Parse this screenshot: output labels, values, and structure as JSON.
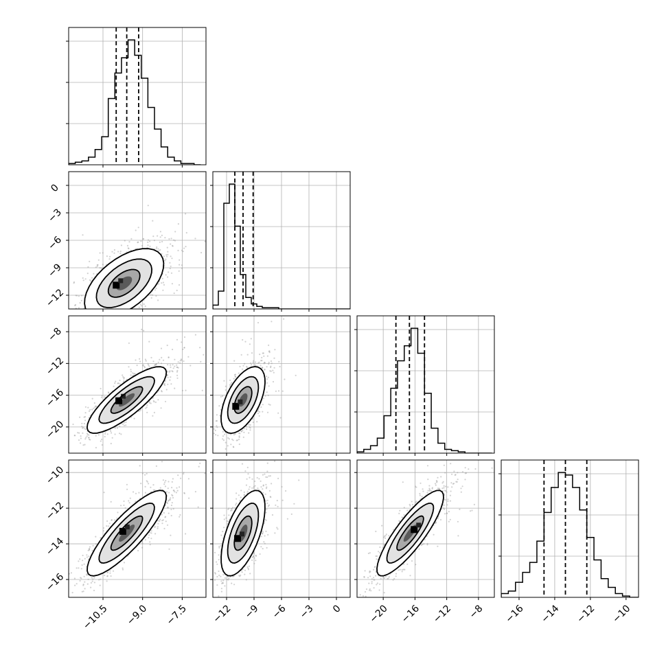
{
  "chart_data": {
    "type": "scatter",
    "n_params": 4,
    "grid": true,
    "params": [
      {
        "range": [
          -11.8,
          -6.6
        ],
        "ticks": [
          -10.5,
          -9.0,
          -7.5
        ],
        "tick_labels": [
          "−10.5",
          "−9.0",
          "−7.5"
        ],
        "quantiles": [
          -10.0,
          -9.6,
          -9.15
        ]
      },
      {
        "range": [
          -13.5,
          1.5
        ],
        "ticks": [
          -12,
          -9,
          -6,
          -3,
          0
        ],
        "tick_labels": [
          "−12",
          "−9",
          "−6",
          "−3",
          "0"
        ],
        "quantiles": [
          -11.1,
          -10.2,
          -9.1
        ]
      },
      {
        "range": [
          -23.3,
          -6.0
        ],
        "ticks": [
          -20,
          -16,
          -12,
          -8
        ],
        "tick_labels": [
          "−20",
          "−16",
          "−12",
          "−8"
        ],
        "quantiles": [
          -18.4,
          -16.7,
          -14.8
        ]
      },
      {
        "range": [
          -17.0,
          -9.3
        ],
        "ticks": [
          -16,
          -14,
          -12,
          -10
        ],
        "tick_labels": [
          "−16",
          "−14",
          "−12",
          "−10"
        ],
        "quantiles": [
          -14.6,
          -13.4,
          -12.2
        ]
      }
    ],
    "histograms": [
      {
        "param": 0,
        "bin_start": -11.8,
        "bin_width": 0.25,
        "counts": [
          1,
          2,
          3,
          6,
          12,
          22,
          52,
          72,
          84,
          98,
          86,
          68,
          45,
          28,
          14,
          6,
          3,
          1,
          1,
          0
        ]
      },
      {
        "param": 1,
        "bin_start": -13.5,
        "bin_width": 0.6,
        "counts": [
          3,
          14,
          83,
          98,
          65,
          27,
          9,
          4,
          2,
          1,
          1,
          1,
          0,
          0,
          0,
          0,
          0,
          0,
          0,
          0,
          0,
          0,
          0,
          0,
          0
        ]
      },
      {
        "param": 2,
        "bin_start": -23.3,
        "bin_width": 0.85,
        "counts": [
          1,
          3,
          6,
          12,
          30,
          52,
          74,
          86,
          100,
          80,
          48,
          20,
          8,
          3,
          2,
          1,
          0,
          0,
          0,
          0
        ]
      },
      {
        "param": 3,
        "bin_start": -17.0,
        "bin_width": 0.4,
        "counts": [
          3,
          5,
          12,
          20,
          28,
          45,
          68,
          88,
          100,
          98,
          88,
          70,
          48,
          30,
          15,
          8,
          3,
          1,
          0,
          0
        ]
      }
    ],
    "pairs": [
      {
        "x_param": 0,
        "y_param": 1,
        "mean": [
          -9.7,
          -10.7
        ],
        "sd": [
          0.75,
          1.9
        ],
        "corr": 0.55,
        "n_points": 1400,
        "peak": [
          -10.0,
          -10.9
        ]
      },
      {
        "x_param": 0,
        "y_param": 2,
        "mean": [
          -9.6,
          -16.6
        ],
        "sd": [
          0.75,
          2.1
        ],
        "corr": 0.82,
        "n_points": 1400,
        "peak": [
          -9.9,
          -16.7
        ]
      },
      {
        "x_param": 1,
        "y_param": 2,
        "mean": [
          -10.2,
          -16.6
        ],
        "sd": [
          1.2,
          2.1
        ],
        "corr": 0.55,
        "n_points": 1200,
        "peak": [
          -11.0,
          -17.4
        ]
      },
      {
        "x_param": 0,
        "y_param": 3,
        "mean": [
          -9.6,
          -13.4
        ],
        "sd": [
          0.75,
          1.2
        ],
        "corr": 0.85,
        "n_points": 1400,
        "peak": [
          -9.75,
          -13.3
        ]
      },
      {
        "x_param": 1,
        "y_param": 3,
        "mean": [
          -10.2,
          -13.4
        ],
        "sd": [
          1.2,
          1.2
        ],
        "corr": 0.6,
        "n_points": 1200,
        "peak": [
          -10.8,
          -13.7
        ]
      },
      {
        "x_param": 2,
        "y_param": 3,
        "mean": [
          -16.6,
          -13.4
        ],
        "sd": [
          2.1,
          1.2
        ],
        "corr": 0.85,
        "n_points": 1400,
        "peak": [
          -16.1,
          -13.2
        ]
      }
    ]
  }
}
